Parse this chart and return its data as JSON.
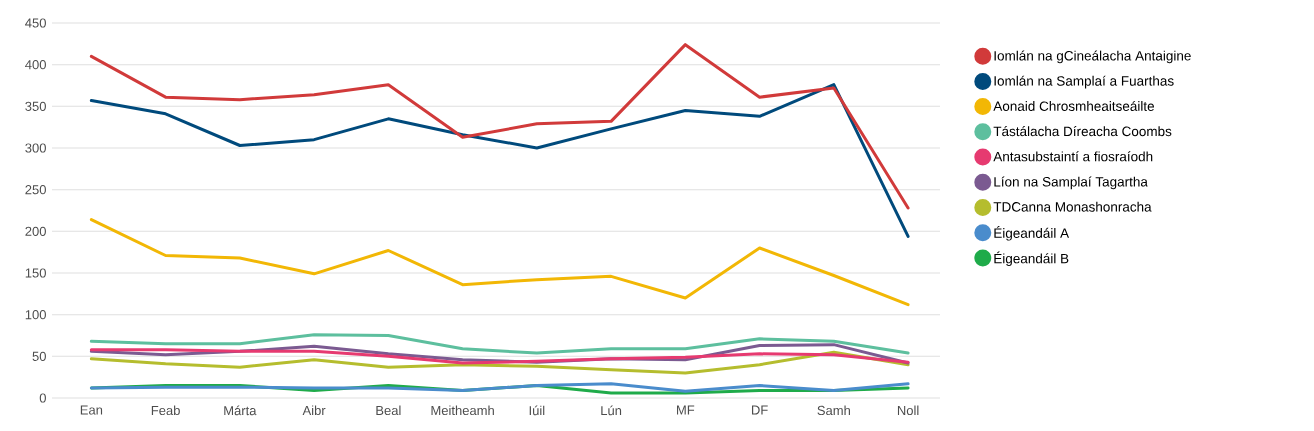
{
  "chart_data": {
    "type": "line",
    "categories": [
      "Ean",
      "Feab",
      "Márta",
      "Aibr",
      "Beal",
      "Meitheamh",
      "Iúil",
      "Lún",
      "MF",
      "DF",
      "Samh",
      "Noll"
    ],
    "series": [
      {
        "name": "Iomlán na gCineálacha Antaigine",
        "color": "#d13a3a",
        "values": [
          410,
          361,
          358,
          364,
          376,
          313,
          329,
          332,
          424,
          361,
          372,
          228
        ]
      },
      {
        "name": "Iomlán na Samplaí a Fuarthas",
        "color": "#004a7c",
        "values": [
          357,
          341,
          303,
          310,
          335,
          316,
          300,
          323,
          345,
          338,
          376,
          194
        ]
      },
      {
        "name": "Aonaid Chrosmheaitseáilte",
        "color": "#f2b705",
        "values": [
          214,
          171,
          168,
          149,
          177,
          136,
          142,
          146,
          120,
          180,
          147,
          112
        ]
      },
      {
        "name": "Tástálacha Díreacha Coombs",
        "color": "#5dbf9e",
        "values": [
          68,
          65,
          65,
          76,
          75,
          59,
          54,
          59,
          59,
          71,
          68,
          54
        ]
      },
      {
        "name": "Antasubstaintí a fiosraíodh",
        "color": "#e63a70",
        "values": [
          58,
          58,
          56,
          56,
          50,
          42,
          44,
          47,
          49,
          53,
          52,
          43
        ]
      },
      {
        "name": "Líon na Samplaí Tagartha",
        "color": "#7b5a91",
        "values": [
          56,
          52,
          56,
          62,
          53,
          46,
          43,
          47,
          46,
          63,
          64,
          42
        ]
      },
      {
        "name": "TDCanna Monashonracha",
        "color": "#b5bd2e",
        "values": [
          47,
          41,
          37,
          46,
          37,
          40,
          38,
          34,
          30,
          40,
          55,
          40
        ]
      },
      {
        "name": "Éigeandáil A",
        "color": "#4a8ccc",
        "values": [
          12,
          13,
          13,
          12,
          12,
          9,
          15,
          17,
          8,
          15,
          9,
          17
        ]
      },
      {
        "name": "Éigeandáil B",
        "color": "#1fab4a",
        "values": [
          12,
          15,
          15,
          9,
          15,
          9,
          15,
          6,
          6,
          9,
          9,
          12
        ]
      }
    ],
    "ylim": [
      0,
      450
    ],
    "yticks": [
      0,
      50,
      100,
      150,
      200,
      250,
      300,
      350,
      400,
      450
    ],
    "grid": "y",
    "legend": "right"
  }
}
